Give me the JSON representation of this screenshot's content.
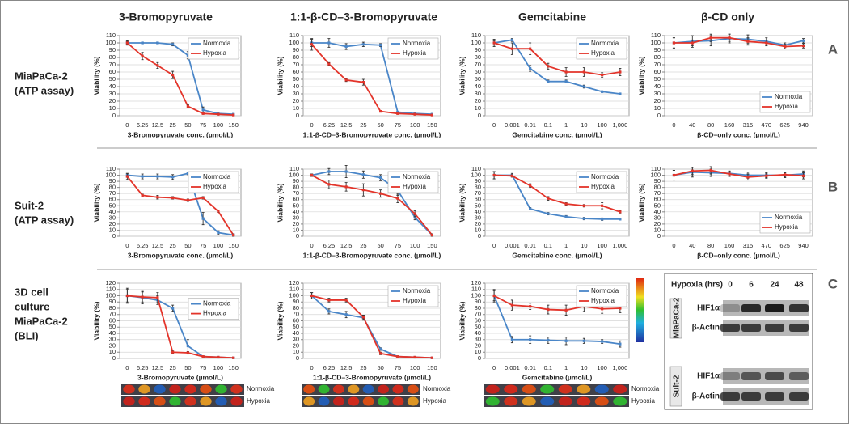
{
  "column_headers": [
    "3-Bromopyruvate",
    "1:1-β-CD–3-Bromopyruvate",
    "Gemcitabine",
    "β-CD only"
  ],
  "row_labels": [
    [
      "MiaPaCa-2",
      "(ATP assay)"
    ],
    [
      "Suit-2",
      "(ATP assay)"
    ],
    [
      "3D cell",
      "culture",
      "MiaPaCa-2",
      "(BLI)"
    ]
  ],
  "panel_letters": [
    "A",
    "B",
    "C"
  ],
  "bli_labels": [
    [
      "Normoxia",
      "Hypoxia"
    ],
    [
      "Normoxia",
      "Hypoxia"
    ],
    [
      "Normoxia",
      "Hypoxia"
    ]
  ],
  "western_blot": {
    "header": "Hypoxia (hrs)",
    "timepoints": [
      "0",
      "6",
      "24",
      "48"
    ],
    "cell_lines": [
      {
        "name": "MiaPaCa-2",
        "bands": [
          "HIF1α",
          "β-Actin"
        ]
      },
      {
        "name": "Suit-2",
        "bands": [
          "HIF1α",
          "β-Actin"
        ]
      }
    ]
  },
  "chart_data": [
    {
      "type": "line",
      "y_label": "Viability (%)",
      "x_label": "3-Bromopyruvate conc. (µmol/L)",
      "categories": [
        "0",
        "6.25",
        "12.5",
        "25",
        "50",
        "75",
        "100",
        "150"
      ],
      "ylim": [
        0,
        110
      ],
      "yticks": [
        0,
        10,
        20,
        30,
        40,
        50,
        60,
        70,
        80,
        90,
        100,
        110
      ],
      "grid": true,
      "legend": "upper right",
      "series": [
        {
          "name": "Normoxia",
          "color": "#4a86c8",
          "values": [
            100,
            100,
            100,
            98,
            83,
            8,
            3,
            2
          ],
          "errors": [
            2,
            1,
            1,
            2,
            5,
            4,
            2,
            1
          ]
        },
        {
          "name": "Hypoxia",
          "color": "#e3342a",
          "values": [
            100,
            82,
            69,
            56,
            13,
            3,
            2,
            1
          ],
          "errors": [
            3,
            5,
            4,
            5,
            2,
            1,
            1,
            1
          ]
        }
      ]
    },
    {
      "type": "line",
      "y_label": "Viability (%)",
      "x_label": "1:1-β-CD–3-Bromopyruvate conc. (µmol/L)",
      "categories": [
        "0",
        "6.25",
        "12.5",
        "25",
        "50",
        "75",
        "100",
        "150"
      ],
      "ylim": [
        0,
        110
      ],
      "yticks": [
        0,
        10,
        20,
        30,
        40,
        50,
        60,
        70,
        80,
        90,
        100,
        110
      ],
      "grid": true,
      "legend": "upper right",
      "series": [
        {
          "name": "Normoxia",
          "color": "#4a86c8",
          "values": [
            100,
            100,
            95,
            98,
            97,
            5,
            3,
            2
          ],
          "errors": [
            5,
            6,
            4,
            3,
            2,
            1,
            1,
            1
          ]
        },
        {
          "name": "Hypoxia",
          "color": "#e3342a",
          "values": [
            98,
            71,
            49,
            46,
            6,
            3,
            2,
            1
          ],
          "errors": [
            8,
            2,
            2,
            4,
            1,
            1,
            1,
            1
          ]
        }
      ]
    },
    {
      "type": "line",
      "y_label": "Viability (%)",
      "x_label": "Gemcitabine conc. (µmol/L)",
      "categories": [
        "0",
        "0.001",
        "0.01",
        "0.1",
        "1",
        "10",
        "100",
        "1,000"
      ],
      "ylim": [
        0,
        110
      ],
      "yticks": [
        0,
        10,
        20,
        30,
        40,
        50,
        60,
        70,
        80,
        90,
        100,
        110
      ],
      "grid": true,
      "legend": "upper right",
      "series": [
        {
          "name": "Normoxia",
          "color": "#4a86c8",
          "values": [
            100,
            104,
            65,
            47,
            47,
            40,
            33,
            30
          ],
          "errors": [
            3,
            2,
            4,
            2,
            2,
            2,
            1,
            1
          ]
        },
        {
          "name": "Hypoxia",
          "color": "#e3342a",
          "values": [
            100,
            92,
            92,
            68,
            60,
            60,
            56,
            60
          ],
          "errors": [
            5,
            8,
            8,
            4,
            6,
            6,
            3,
            5
          ]
        }
      ]
    },
    {
      "type": "line",
      "y_label": "Viability (%)",
      "x_label": "β-CD–only conc. (µmol/L)",
      "categories": [
        "0",
        "40",
        "80",
        "160",
        "315",
        "470",
        "625",
        "940"
      ],
      "ylim": [
        0,
        110
      ],
      "yticks": [
        0,
        10,
        20,
        30,
        40,
        50,
        60,
        70,
        80,
        90,
        100,
        110
      ],
      "grid": true,
      "legend": "lower right",
      "series": [
        {
          "name": "Normoxia",
          "color": "#4a86c8",
          "values": [
            100,
            102,
            103,
            106,
            105,
            102,
            97,
            103
          ],
          "errors": [
            7,
            8,
            7,
            6,
            6,
            5,
            3,
            3
          ]
        },
        {
          "name": "Hypoxia",
          "color": "#e3342a",
          "values": [
            100,
            100,
            107,
            107,
            102,
            100,
            95,
            96
          ],
          "errors": [
            7,
            4,
            5,
            5,
            5,
            4,
            3,
            3
          ]
        }
      ]
    },
    {
      "type": "line",
      "y_label": "Viability (%)",
      "x_label": "3-Bromopyruvate conc. (µmol/L)",
      "categories": [
        "0",
        "6.25",
        "12.5",
        "25",
        "50",
        "75",
        "100",
        "150"
      ],
      "ylim": [
        0,
        110
      ],
      "yticks": [
        0,
        10,
        20,
        30,
        40,
        50,
        60,
        70,
        80,
        90,
        100,
        110
      ],
      "grid": true,
      "legend": "upper right",
      "series": [
        {
          "name": "Normoxia",
          "color": "#4a86c8",
          "values": [
            100,
            98,
            98,
            97,
            103,
            29,
            6,
            2
          ],
          "errors": [
            3,
            4,
            4,
            4,
            2,
            10,
            3,
            2
          ]
        },
        {
          "name": "Hypoxia",
          "color": "#e3342a",
          "values": [
            98,
            67,
            64,
            63,
            59,
            63,
            41,
            2
          ],
          "errors": [
            5,
            2,
            3,
            2,
            2,
            2,
            2,
            2
          ]
        }
      ]
    },
    {
      "type": "line",
      "y_label": "Viability (%)",
      "x_label": "1:1-β-CD–3-Bromopyruvate conc. (µmol/L)",
      "categories": [
        "0",
        "6.25",
        "12.5",
        "25",
        "50",
        "75",
        "100",
        "150"
      ],
      "ylim": [
        0,
        110
      ],
      "yticks": [
        0,
        10,
        20,
        30,
        40,
        50,
        60,
        70,
        80,
        90,
        100,
        110
      ],
      "grid": true,
      "legend": "upper right",
      "series": [
        {
          "name": "Normoxia",
          "color": "#4a86c8",
          "values": [
            100,
            106,
            106,
            101,
            96,
            75,
            31,
            2
          ],
          "errors": [
            2,
            5,
            10,
            6,
            5,
            8,
            4,
            2
          ]
        },
        {
          "name": "Hypoxia",
          "color": "#e3342a",
          "values": [
            100,
            85,
            81,
            76,
            70,
            62,
            37,
            2
          ],
          "errors": [
            2,
            7,
            7,
            10,
            6,
            7,
            5,
            2
          ]
        }
      ]
    },
    {
      "type": "line",
      "y_label": "Viability (%)",
      "x_label": "Gemcitabine conc. (µmol/L)",
      "categories": [
        "0",
        "0.001",
        "0.01",
        "0.1",
        "1",
        "10",
        "100",
        "1,000"
      ],
      "ylim": [
        0,
        110
      ],
      "yticks": [
        0,
        10,
        20,
        30,
        40,
        50,
        60,
        70,
        80,
        90,
        100,
        110
      ],
      "grid": true,
      "legend": "upper right",
      "series": [
        {
          "name": "Normoxia",
          "color": "#4a86c8",
          "values": [
            100,
            100,
            45,
            37,
            32,
            29,
            28,
            28
          ],
          "errors": [
            6,
            3,
            2,
            2,
            2,
            2,
            2,
            1
          ]
        },
        {
          "name": "Hypoxia",
          "color": "#e3342a",
          "values": [
            100,
            99,
            83,
            62,
            53,
            50,
            50,
            40
          ],
          "errors": [
            6,
            2,
            3,
            3,
            2,
            2,
            5,
            2
          ]
        }
      ]
    },
    {
      "type": "line",
      "y_label": "Viability (%)",
      "x_label": "β-CD–only conc. (µmol/L)",
      "categories": [
        "0",
        "40",
        "80",
        "160",
        "315",
        "470",
        "625",
        "940"
      ],
      "ylim": [
        0,
        110
      ],
      "yticks": [
        0,
        10,
        20,
        30,
        40,
        50,
        60,
        70,
        80,
        90,
        100,
        110
      ],
      "grid": true,
      "legend": "lower right",
      "series": [
        {
          "name": "Normoxia",
          "color": "#4a86c8",
          "values": [
            100,
            105,
            104,
            103,
            100,
            100,
            100,
            102
          ],
          "errors": [
            8,
            8,
            6,
            4,
            5,
            4,
            4,
            5
          ]
        },
        {
          "name": "Hypoxia",
          "color": "#e3342a",
          "values": [
            100,
            107,
            108,
            102,
            97,
            99,
            101,
            99
          ],
          "errors": [
            8,
            6,
            6,
            4,
            5,
            4,
            4,
            5
          ]
        }
      ]
    },
    {
      "type": "line",
      "y_label": "Viability (%)",
      "x_label": "3-Bromopyruvate (µmol/L)",
      "categories": [
        "0",
        "6.25",
        "12.5",
        "25",
        "50",
        "75",
        "100",
        "150"
      ],
      "ylim": [
        0,
        120
      ],
      "yticks": [
        0,
        10,
        20,
        30,
        40,
        50,
        60,
        70,
        80,
        90,
        100,
        110,
        120
      ],
      "grid": true,
      "legend": "center right",
      "series": [
        {
          "name": "Normoxia",
          "color": "#4a86c8",
          "values": [
            100,
            97,
            93,
            80,
            20,
            3,
            2,
            1
          ],
          "errors": [
            12,
            10,
            7,
            5,
            10,
            1,
            1,
            1
          ]
        },
        {
          "name": "Hypoxia",
          "color": "#e3342a",
          "values": [
            100,
            98,
            97,
            10,
            9,
            3,
            2,
            1
          ],
          "errors": [
            10,
            8,
            8,
            2,
            2,
            1,
            1,
            1
          ]
        }
      ]
    },
    {
      "type": "line",
      "y_label": "Viability (%)",
      "x_label": "1:1-β-CD–3-Bromopyruvate (µmol/L)",
      "categories": [
        "0",
        "6.25",
        "12.5",
        "25",
        "50",
        "75",
        "100",
        "150"
      ],
      "ylim": [
        0,
        120
      ],
      "yticks": [
        0,
        10,
        20,
        30,
        40,
        50,
        60,
        70,
        80,
        90,
        100,
        110,
        120
      ],
      "grid": true,
      "legend": "upper right",
      "series": [
        {
          "name": "Normoxia",
          "color": "#4a86c8",
          "values": [
            100,
            75,
            70,
            65,
            15,
            3,
            2,
            1
          ],
          "errors": [
            5,
            4,
            5,
            4,
            2,
            1,
            1,
            1
          ]
        },
        {
          "name": "Hypoxia",
          "color": "#e3342a",
          "values": [
            100,
            93,
            93,
            66,
            8,
            3,
            2,
            1
          ],
          "errors": [
            5,
            3,
            3,
            3,
            2,
            1,
            1,
            1
          ]
        }
      ]
    },
    {
      "type": "line",
      "y_label": "Viability (%)",
      "x_label": "Gemcitabine (µmol/L)",
      "categories": [
        "0",
        "0.001",
        "0.01",
        "0.1",
        "1",
        "10",
        "100",
        "1,000"
      ],
      "ylim": [
        0,
        120
      ],
      "yticks": [
        0,
        10,
        20,
        30,
        40,
        50,
        60,
        70,
        80,
        90,
        100,
        110,
        120
      ],
      "grid": true,
      "legend": "upper right",
      "series": [
        {
          "name": "Normoxia",
          "color": "#4a86c8",
          "values": [
            100,
            30,
            30,
            29,
            28,
            28,
            27,
            23
          ],
          "errors": [
            8,
            5,
            6,
            5,
            6,
            4,
            3,
            5
          ]
        },
        {
          "name": "Hypoxia",
          "color": "#e3342a",
          "values": [
            100,
            85,
            83,
            78,
            77,
            83,
            79,
            80
          ],
          "errors": [
            10,
            8,
            5,
            7,
            8,
            8,
            7,
            7
          ]
        }
      ]
    }
  ]
}
